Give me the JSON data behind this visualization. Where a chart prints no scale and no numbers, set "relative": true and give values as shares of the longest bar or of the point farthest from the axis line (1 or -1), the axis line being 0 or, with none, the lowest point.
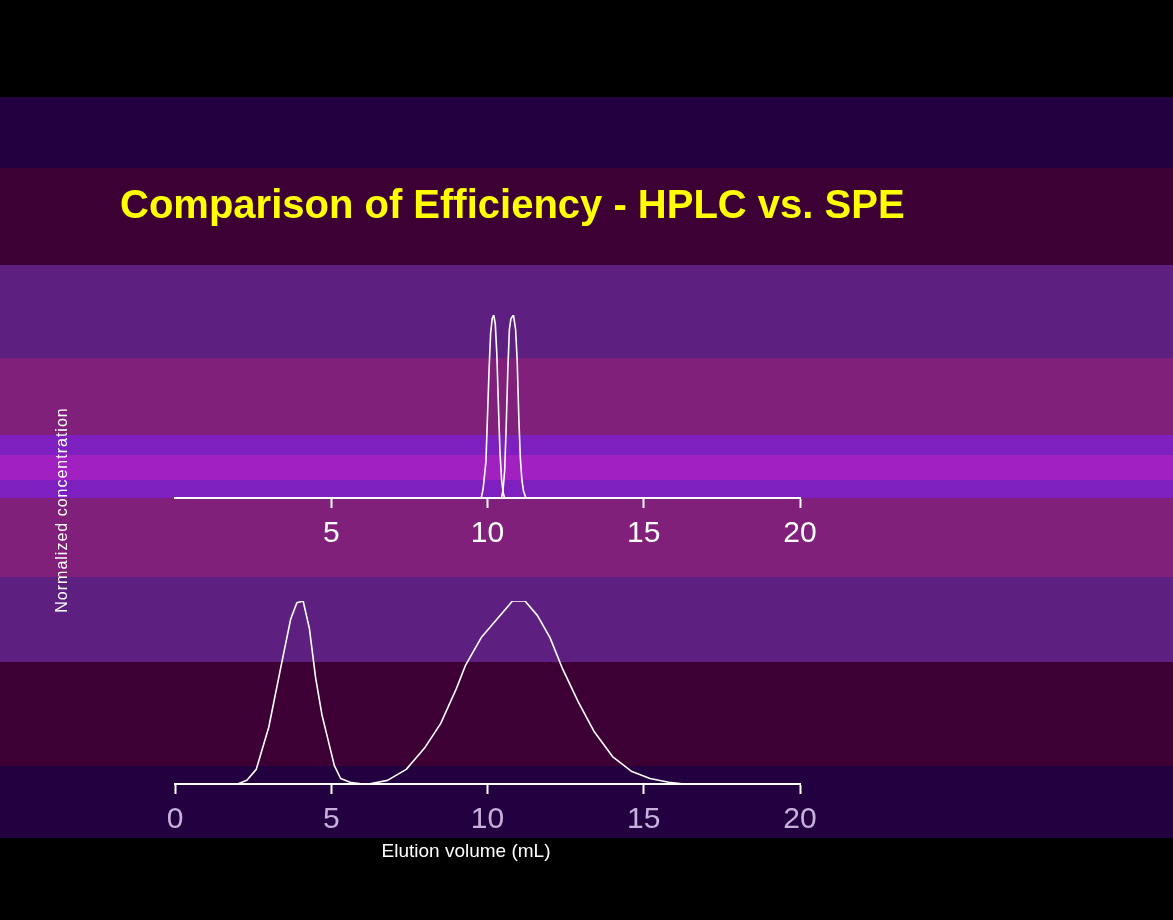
{
  "chart_data": [
    {
      "type": "line",
      "title": "Comparison of Efficiency - HPLC vs. SPE",
      "ylabel": "Normalized concentration",
      "relative": true,
      "xlim": [
        0,
        20
      ],
      "xticks": [
        5,
        10,
        15,
        20
      ],
      "grid": false,
      "legend": false,
      "marker": "none",
      "line_style": "solid",
      "series": [
        {
          "color": "#ffffff",
          "x": [
            9.8,
            9.86,
            9.95,
            10.0,
            10.05,
            10.1,
            10.15,
            10.2,
            10.25,
            10.3,
            10.35,
            10.4,
            10.45,
            10.5,
            10.55
          ],
          "values": [
            0,
            0.05,
            0.2,
            0.45,
            0.7,
            0.9,
            0.98,
            1.0,
            0.95,
            0.78,
            0.5,
            0.25,
            0.1,
            0.03,
            0
          ]
        },
        {
          "color": "#ffffff",
          "x": [
            10.45,
            10.5,
            10.55,
            10.6,
            10.65,
            10.7,
            10.75,
            10.83,
            10.9,
            10.95,
            11.0,
            11.05,
            11.1,
            11.15,
            11.23
          ],
          "values": [
            0,
            0.05,
            0.15,
            0.4,
            0.7,
            0.92,
            0.98,
            1.0,
            0.92,
            0.75,
            0.45,
            0.22,
            0.1,
            0.04,
            0
          ]
        }
      ]
    },
    {
      "type": "line",
      "xlabel": "Elution volume (mL)",
      "relative": true,
      "xlim": [
        0,
        20
      ],
      "xticks": [
        0,
        5,
        10,
        15,
        20
      ],
      "grid": false,
      "legend": false,
      "marker": "none",
      "line_style": "solid",
      "series": [
        {
          "color": "#ffffff",
          "x": [
            2.0,
            2.3,
            2.6,
            3.0,
            3.4,
            3.7,
            3.9,
            4.1,
            4.3,
            4.5,
            4.7,
            4.9,
            5.1,
            5.3,
            5.6,
            6.0
          ],
          "values": [
            0,
            0.02,
            0.08,
            0.31,
            0.65,
            0.9,
            0.99,
            1.0,
            0.85,
            0.58,
            0.38,
            0.24,
            0.1,
            0.03,
            0.01,
            0
          ]
        },
        {
          "color": "#ffffff",
          "x": [
            6.2,
            6.8,
            7.4,
            8.0,
            8.5,
            9.0,
            9.3,
            9.8,
            10.3,
            10.8,
            11.2,
            11.6,
            12.0,
            12.4,
            12.9,
            13.4,
            14.0,
            14.6,
            15.2,
            15.8,
            16.3
          ],
          "values": [
            0,
            0.02,
            0.08,
            0.2,
            0.33,
            0.52,
            0.65,
            0.8,
            0.9,
            1.0,
            1.0,
            0.92,
            0.8,
            0.63,
            0.45,
            0.29,
            0.15,
            0.07,
            0.03,
            0.01,
            0
          ]
        }
      ]
    }
  ]
}
